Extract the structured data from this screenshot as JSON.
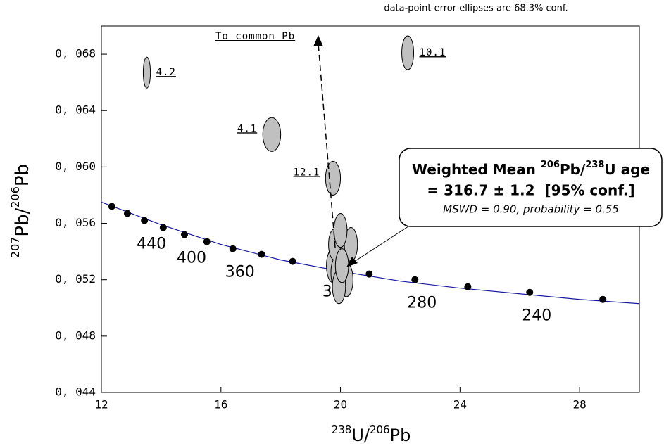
{
  "chart_data": {
    "type": "concordia",
    "title": "data-point error ellipses are 68.3% conf.",
    "xlabel_parts": [
      "238",
      "U/",
      "206",
      "Pb"
    ],
    "ylabel_parts": [
      "207",
      "Pb/",
      "206",
      "Pb"
    ],
    "xlim": [
      12,
      30
    ],
    "ylim": [
      0.044,
      0.07
    ],
    "xticks": [
      12,
      16,
      20,
      24,
      28
    ],
    "yticks": [
      {
        "value": 0.044,
        "label": "0, 044"
      },
      {
        "value": 0.048,
        "label": "0, 048"
      },
      {
        "value": 0.052,
        "label": "0, 052"
      },
      {
        "value": 0.056,
        "label": "0, 056"
      },
      {
        "value": 0.06,
        "label": "0, 060"
      },
      {
        "value": 0.064,
        "label": "0, 064"
      },
      {
        "value": 0.068,
        "label": "0, 068"
      }
    ],
    "curve": {
      "color": "#1a1aa0",
      "x": [
        12,
        14,
        16,
        18,
        20,
        22,
        24,
        26,
        28,
        30
      ],
      "values": [
        0.0575,
        0.0559,
        0.0545,
        0.0534,
        0.0526,
        0.0519,
        0.0514,
        0.051,
        0.0506,
        0.0503
      ]
    },
    "age_marks": {
      "color": "#000000",
      "x": [
        12.35,
        12.87,
        13.44,
        14.07,
        14.78,
        15.53,
        16.4,
        17.36,
        18.4,
        19.65,
        20.96,
        22.49,
        24.26,
        26.33,
        28.78
      ],
      "values": [
        0.0572,
        0.0567,
        0.0562,
        0.0557,
        0.0552,
        0.0547,
        0.0542,
        0.0538,
        0.0533,
        0.0528,
        0.0524,
        0.052,
        0.0515,
        0.0511,
        0.0506
      ],
      "labels": [
        null,
        null,
        "440",
        null,
        "400",
        null,
        "360",
        null,
        null,
        "320",
        null,
        "280",
        null,
        "240",
        null
      ]
    },
    "spots": {
      "color": "#c0c0c0",
      "x": [
        13.52,
        22.25,
        17.7,
        19.75,
        19.75,
        19.9,
        20.1,
        20.35,
        19.8,
        20.0,
        20.2,
        19.95,
        20.05
      ],
      "values": [
        0.0667,
        0.0681,
        0.0623,
        0.0592,
        0.053,
        0.0525,
        0.0535,
        0.0545,
        0.0545,
        0.0555,
        0.052,
        0.0515,
        0.053
      ],
      "x_err": [
        0.12,
        0.2,
        0.3,
        0.25,
        0.22,
        0.22,
        0.22,
        0.22,
        0.2,
        0.22,
        0.22,
        0.22,
        0.22
      ],
      "y_err": [
        0.0011,
        0.0012,
        0.0012,
        0.0012,
        0.0012,
        0.0012,
        0.0012,
        0.0012,
        0.0011,
        0.0012,
        0.0012,
        0.0012,
        0.0012
      ],
      "labels": [
        "4.2",
        "10.1",
        "4.1",
        "12.1",
        null,
        null,
        null,
        null,
        null,
        null,
        null,
        null,
        null
      ]
    },
    "arrow_label": "To common Pb",
    "callout": {
      "line1_parts": [
        "Weighted Mean ",
        "206",
        "Pb/",
        "238",
        "U age"
      ],
      "line2": "= 316.7 ± 1.2  [95% conf.]",
      "line3": "MSWD = 0.90, probability = 0.55"
    }
  }
}
